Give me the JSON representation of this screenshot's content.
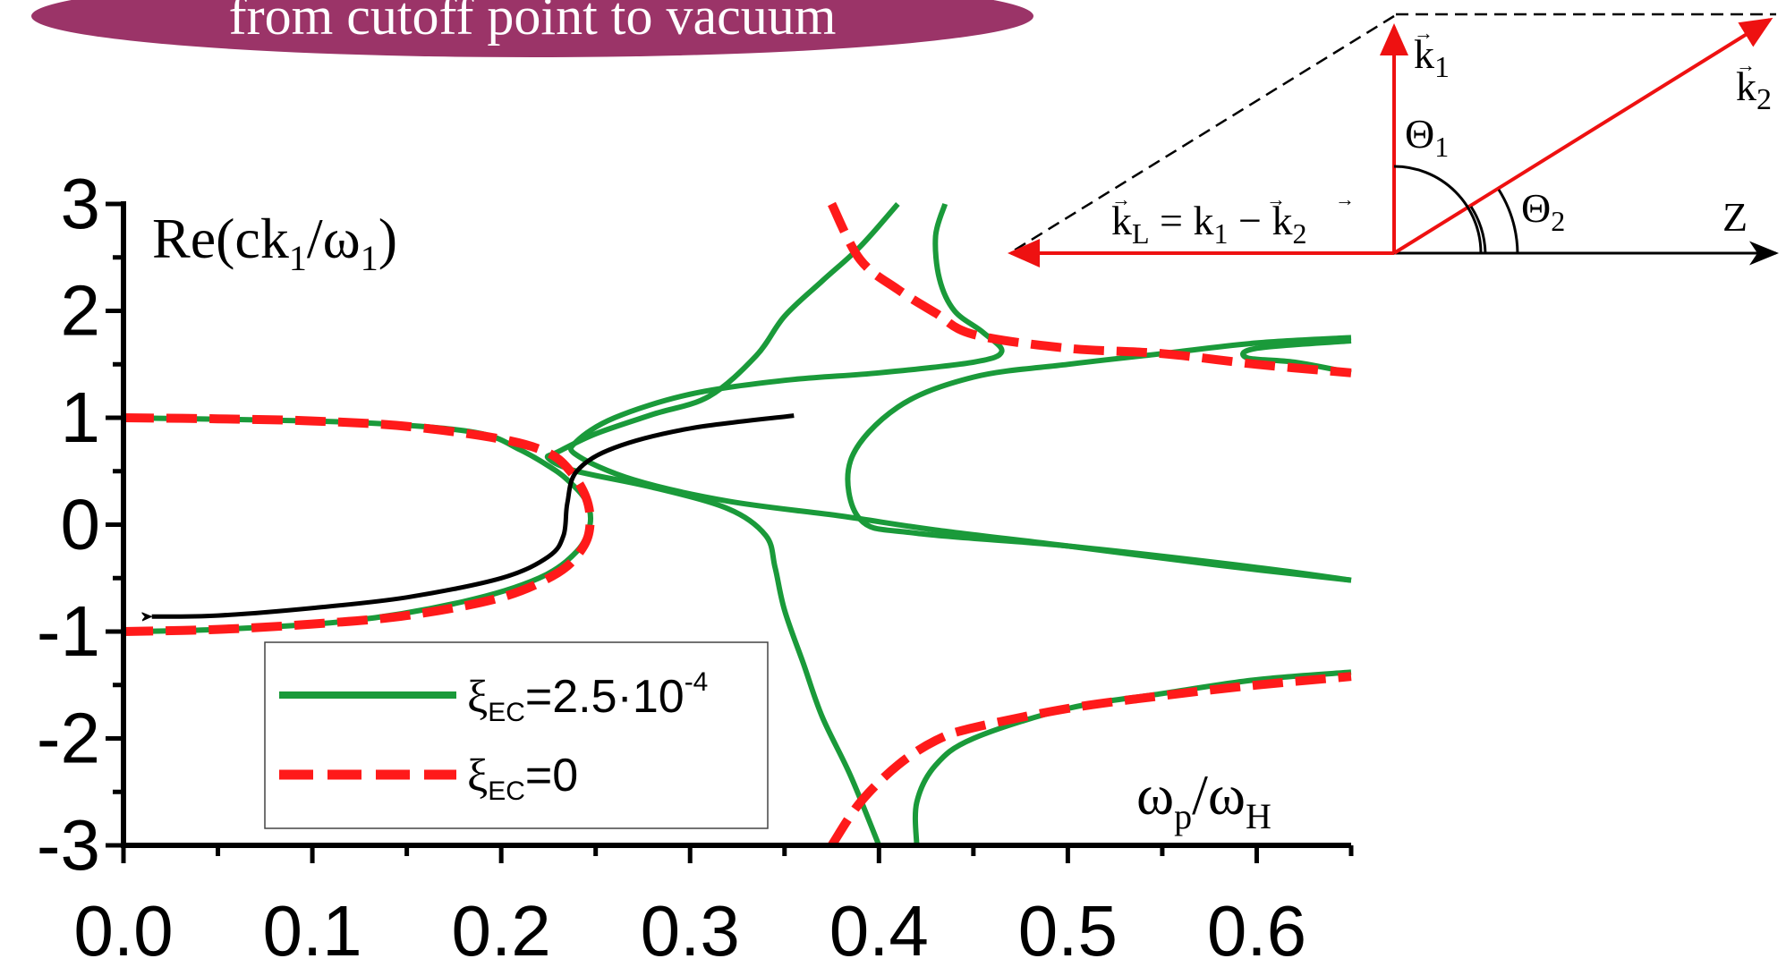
{
  "banner": {
    "text": "from cutoff point to vacuum",
    "color": "#9b3468"
  },
  "chart_data": {
    "type": "line",
    "title": "",
    "xlabel": "ω_p/ω_H",
    "ylabel": "Re(ck_1/ω_1)",
    "xlim": [
      0.0,
      0.65
    ],
    "ylim": [
      -3,
      3
    ],
    "x_ticks": [
      "0.0",
      "0.1",
      "0.2",
      "0.3",
      "0.4",
      "0.5",
      "0.6"
    ],
    "y_ticks": [
      "3",
      "2",
      "1",
      "0",
      "-1",
      "-2",
      "-3"
    ],
    "grid": false,
    "legend_position": "bottom-left",
    "colors": {
      "green": "#1a9a3a",
      "red": "#ff1a1a",
      "black": "#000000"
    },
    "legend": [
      {
        "sym": "ξ",
        "sub": "EC",
        "rest": "=2.5·10",
        "sup": "-4",
        "style": "solid",
        "color": "#1a9a3a"
      },
      {
        "sym": "ξ",
        "sub": "EC",
        "rest": "=0",
        "sup": "",
        "style": "dashed",
        "color": "#ff1a1a"
      }
    ],
    "series": [
      {
        "name": "ξEC=0",
        "id": "red-lower",
        "color": "#ff1a1a",
        "style": "dashed",
        "points": [
          [
            0.0,
            1.0
          ],
          [
            0.05,
            0.99
          ],
          [
            0.1,
            0.97
          ],
          [
            0.15,
            0.92
          ],
          [
            0.2,
            0.8
          ],
          [
            0.225,
            0.67
          ],
          [
            0.237,
            0.49
          ],
          [
            0.245,
            0.25
          ],
          [
            0.247,
            0.0
          ],
          [
            0.243,
            -0.22
          ],
          [
            0.23,
            -0.45
          ],
          [
            0.2,
            -0.68
          ],
          [
            0.15,
            -0.85
          ],
          [
            0.1,
            -0.93
          ],
          [
            0.05,
            -0.98
          ],
          [
            0.0,
            -1.0
          ]
        ]
      },
      {
        "name": "ξEC=0",
        "id": "red-upper",
        "color": "#ff1a1a",
        "style": "dashed",
        "points": [
          [
            0.375,
            3.0
          ],
          [
            0.39,
            2.48
          ],
          [
            0.41,
            2.2
          ],
          [
            0.43,
            1.98
          ],
          [
            0.45,
            1.78
          ],
          [
            0.5,
            1.65
          ],
          [
            0.55,
            1.6
          ],
          [
            0.6,
            1.5
          ],
          [
            0.65,
            1.42
          ]
        ]
      },
      {
        "name": "ξEC=0",
        "id": "red-bottom",
        "color": "#ff1a1a",
        "style": "dashed",
        "points": [
          [
            0.375,
            -3.0
          ],
          [
            0.39,
            -2.6
          ],
          [
            0.41,
            -2.25
          ],
          [
            0.43,
            -2.02
          ],
          [
            0.45,
            -1.9
          ],
          [
            0.5,
            -1.72
          ],
          [
            0.55,
            -1.6
          ],
          [
            0.6,
            -1.5
          ],
          [
            0.65,
            -1.42
          ]
        ]
      },
      {
        "name": "ξEC=2.5·10^-4",
        "id": "green-1",
        "color": "#1a9a3a",
        "style": "solid",
        "points": [
          [
            0.0,
            1.0
          ],
          [
            0.1,
            0.97
          ],
          [
            0.15,
            0.93
          ],
          [
            0.19,
            0.85
          ],
          [
            0.21,
            0.7
          ],
          [
            0.225,
            0.55
          ],
          [
            0.235,
            0.42
          ],
          [
            0.245,
            0.22
          ],
          [
            0.247,
            0.0
          ],
          [
            0.24,
            -0.25
          ],
          [
            0.22,
            -0.5
          ],
          [
            0.18,
            -0.72
          ],
          [
            0.12,
            -0.9
          ],
          [
            0.05,
            -0.98
          ],
          [
            0.0,
            -1.0
          ]
        ]
      },
      {
        "name": "ξEC=2.5·10^-4",
        "id": "green-2",
        "color": "#1a9a3a",
        "style": "solid",
        "points": [
          [
            0.41,
            3.0
          ],
          [
            0.39,
            2.6
          ],
          [
            0.37,
            2.28
          ],
          [
            0.35,
            1.95
          ],
          [
            0.335,
            1.58
          ],
          [
            0.31,
            1.2
          ],
          [
            0.28,
            1.03
          ],
          [
            0.25,
            0.85
          ],
          [
            0.23,
            0.68
          ],
          [
            0.225,
            0.62
          ],
          [
            0.24,
            0.5
          ],
          [
            0.28,
            0.35
          ],
          [
            0.32,
            0.15
          ],
          [
            0.34,
            -0.1
          ],
          [
            0.345,
            -0.4
          ],
          [
            0.35,
            -0.8
          ],
          [
            0.36,
            -1.3
          ],
          [
            0.37,
            -1.8
          ],
          [
            0.385,
            -2.35
          ],
          [
            0.4,
            -3.0
          ]
        ]
      },
      {
        "name": "ξEC=2.5·10^-4",
        "id": "green-3",
        "color": "#1a9a3a",
        "style": "solid",
        "points": [
          [
            0.435,
            3.0
          ],
          [
            0.43,
            2.7
          ],
          [
            0.432,
            2.3
          ],
          [
            0.44,
            2.0
          ],
          [
            0.455,
            1.8
          ],
          [
            0.465,
            1.62
          ],
          [
            0.45,
            1.52
          ],
          [
            0.4,
            1.42
          ],
          [
            0.35,
            1.35
          ],
          [
            0.3,
            1.22
          ],
          [
            0.26,
            1.0
          ],
          [
            0.24,
            0.78
          ],
          [
            0.24,
            0.65
          ],
          [
            0.27,
            0.42
          ],
          [
            0.32,
            0.22
          ],
          [
            0.38,
            0.08
          ],
          [
            0.43,
            -0.05
          ],
          [
            0.5,
            -0.2
          ],
          [
            0.58,
            -0.38
          ],
          [
            0.65,
            -0.52
          ]
        ]
      },
      {
        "name": "ξEC=2.5·10^-4",
        "id": "green-4",
        "color": "#1a9a3a",
        "style": "solid",
        "points": [
          [
            0.65,
            1.75
          ],
          [
            0.6,
            1.7
          ],
          [
            0.55,
            1.6
          ],
          [
            0.5,
            1.5
          ],
          [
            0.45,
            1.38
          ],
          [
            0.41,
            1.1
          ],
          [
            0.385,
            0.6
          ],
          [
            0.39,
            0.05
          ],
          [
            0.42,
            -0.08
          ],
          [
            0.5,
            -0.2
          ],
          [
            0.6,
            -0.4
          ],
          [
            0.65,
            -0.52
          ]
        ]
      },
      {
        "name": "ξEC=2.5·10^-4",
        "id": "green-5",
        "color": "#1a9a3a",
        "style": "solid",
        "points": [
          [
            0.65,
            1.72
          ],
          [
            0.6,
            1.65
          ],
          [
            0.595,
            1.56
          ],
          [
            0.62,
            1.52
          ],
          [
            0.65,
            1.42
          ]
        ]
      },
      {
        "name": "ξEC=2.5·10^-4",
        "id": "green-6",
        "color": "#1a9a3a",
        "style": "solid",
        "points": [
          [
            0.42,
            -3.0
          ],
          [
            0.42,
            -2.6
          ],
          [
            0.43,
            -2.25
          ],
          [
            0.45,
            -2.0
          ],
          [
            0.5,
            -1.72
          ],
          [
            0.55,
            -1.58
          ],
          [
            0.6,
            -1.45
          ],
          [
            0.65,
            -1.38
          ]
        ]
      },
      {
        "name": "",
        "id": "black-arrow",
        "color": "#000000",
        "style": "solid",
        "points": [
          [
            0.355,
            1.02
          ],
          [
            0.3,
            0.9
          ],
          [
            0.26,
            0.72
          ],
          [
            0.24,
            0.5
          ],
          [
            0.235,
            0.2
          ],
          [
            0.233,
            -0.1
          ],
          [
            0.225,
            -0.3
          ],
          [
            0.2,
            -0.5
          ],
          [
            0.15,
            -0.68
          ],
          [
            0.1,
            -0.78
          ],
          [
            0.05,
            -0.85
          ],
          [
            0.015,
            -0.86
          ]
        ]
      }
    ]
  },
  "inset": {
    "color": "#ee1111",
    "labels": {
      "k1": "k",
      "k1_sub": "1",
      "k2": "k",
      "k2_sub": "2",
      "theta1": "Θ",
      "theta1_sub": "1",
      "theta2": "Θ",
      "theta2_sub": "2",
      "z": "Z",
      "kl": "k",
      "kl_sub": "L",
      "eq": " = ",
      "k1b": "k",
      "k1b_sub": "1",
      "minus": " − ",
      "k2b": "k",
      "k2b_sub": "2"
    }
  }
}
